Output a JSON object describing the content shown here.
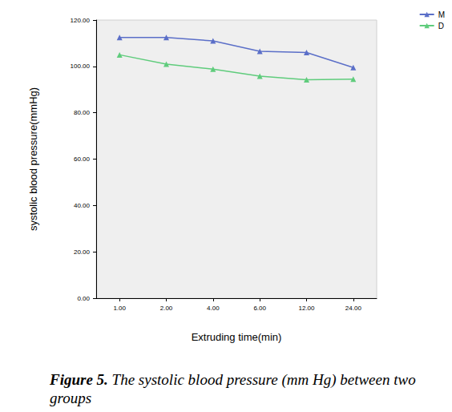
{
  "chart_data": {
    "type": "line",
    "title": "Figure 5.",
    "subtitle": "The systolic blood pressure (mm Hg) between two groups",
    "x_label": "Extruding time(min)",
    "y_label": "systolic blood pressure(mmHg)",
    "categories": [
      "1.00",
      "2.00",
      "4.00",
      "6.00",
      "12.00",
      "24.00"
    ],
    "series": [
      {
        "name": "M",
        "color": "#5b6fc8",
        "marker": "triangle",
        "values": [
          112.5,
          112.5,
          111,
          106.5,
          106,
          99.5
        ]
      },
      {
        "name": "D",
        "color": "#5fcc7c",
        "marker": "triangle",
        "values": [
          105,
          101,
          98.8,
          95.8,
          94.2,
          94.5
        ]
      }
    ],
    "ylim": [
      0,
      120
    ],
    "yticks": [
      {
        "value": 0,
        "label": "0.00"
      },
      {
        "value": 20,
        "label": "20.00"
      },
      {
        "value": 40,
        "label": "40.00"
      },
      {
        "value": 60,
        "label": "60.00"
      },
      {
        "value": 80,
        "label": "80.00"
      },
      {
        "value": 100,
        "label": "100.00"
      },
      {
        "value": 120,
        "label": "120.00"
      }
    ],
    "grid": false,
    "legend": "upper right"
  }
}
